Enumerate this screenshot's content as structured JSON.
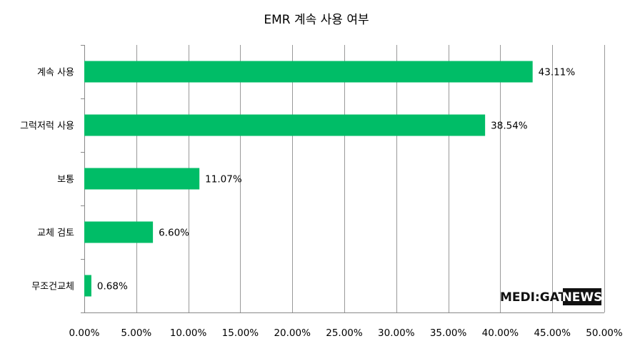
{
  "chart_data": {
    "type": "bar",
    "orientation": "horizontal",
    "title": "EMR 계속 사용 여부",
    "categories": [
      "계속 사용",
      "그럭저럭 사용",
      "보통",
      "교체 검토",
      "무조건교체"
    ],
    "values": [
      43.11,
      38.54,
      11.07,
      6.6,
      0.68
    ],
    "data_labels": [
      "43.11%",
      "38.54%",
      "11.07%",
      "6.60%",
      "0.68%"
    ],
    "x_ticks": [
      "0.00%",
      "5.00%",
      "10.00%",
      "15.00%",
      "20.00%",
      "25.00%",
      "30.00%",
      "35.00%",
      "40.00%",
      "45.00%",
      "50.00%"
    ],
    "xlim": [
      0,
      50
    ],
    "xlabel": "",
    "ylabel": "",
    "grid": true,
    "bar_color": "#00BD67"
  },
  "watermark": {
    "part1": "MEDI:GATE",
    "part2": "NEWS"
  }
}
